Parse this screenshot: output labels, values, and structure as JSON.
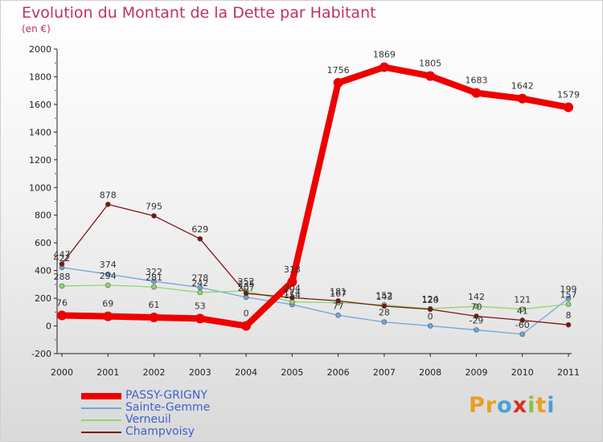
{
  "title": "Evolution du Montant de la Dette par Habitant",
  "subtitle": "(en €)",
  "logo": {
    "text": "Proxiti",
    "letters": [
      "P",
      "r",
      "o",
      "x",
      "i",
      "t",
      "i"
    ],
    "colors": [
      "#e8a020",
      "#e8a020",
      "#4aa0d8",
      "#d83020",
      "#8cc040",
      "#e8a020",
      "#4aa0d8"
    ]
  },
  "chart_data": {
    "type": "line",
    "title": "Evolution du Montant de la Dette par Habitant",
    "subtitle": "(en €)",
    "x": [
      "2000",
      "2001",
      "2002",
      "2003",
      "2004",
      "2005",
      "2006",
      "2007",
      "2008",
      "2009",
      "2010",
      "2011"
    ],
    "ylim": [
      -200,
      2000
    ],
    "yticks": [
      -200,
      0,
      200,
      400,
      600,
      800,
      1000,
      1200,
      1400,
      1600,
      1800,
      2000
    ],
    "grid": false,
    "legend_position": "bottom-left",
    "series": [
      {
        "name": "PASSY-GRIGNY",
        "color": "#ee0000",
        "width": 8,
        "marker": 6,
        "values": [
          76,
          69,
          61,
          53,
          0,
          318,
          1756,
          1869,
          1805,
          1683,
          1642,
          1579
        ]
      },
      {
        "name": "Sainte-Gemme",
        "color": "#6fa6d6",
        "width": 1.3,
        "marker": 3,
        "values": [
          422,
          374,
          322,
          278,
          207,
          154,
          77,
          28,
          0,
          -29,
          -60,
          199
        ]
      },
      {
        "name": "Verneuil",
        "color": "#8ed86a",
        "width": 1.3,
        "marker": 3,
        "values": [
          288,
          294,
          281,
          242,
          252,
          174,
          167,
          152,
          124,
          142,
          121,
          157
        ]
      },
      {
        "name": "Champvoisy",
        "color": "#7a1414",
        "width": 1.3,
        "marker": 3,
        "values": [
          447,
          878,
          795,
          629,
          235,
          204,
          181,
          143,
          120,
          70,
          41,
          8
        ]
      }
    ]
  }
}
